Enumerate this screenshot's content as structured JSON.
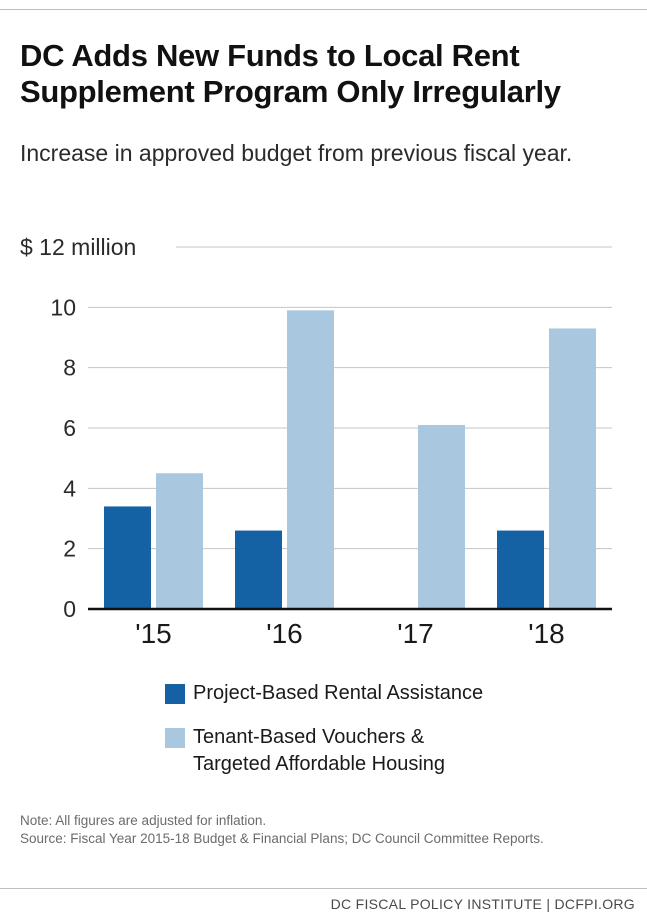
{
  "title": "DC Adds New Funds to Local Rent Supplement Program Only Irregularly",
  "subtitle": "Increase in approved budget from previous fiscal year.",
  "note": "Note: All figures are adjusted for inflation.",
  "source": "Source: Fiscal Year 2015-18 Budget & Financial Plans; DC Council Committee Reports.",
  "footer": "DC FISCAL POLICY INSTITUTE | DCFPI.ORG",
  "chart_data": {
    "type": "bar",
    "categories": [
      "'15",
      "'16",
      "'17",
      "'18"
    ],
    "series": [
      {
        "name": "Project-Based Rental Assistance",
        "color": "#1461a4",
        "values": [
          3.4,
          2.6,
          0,
          2.6
        ]
      },
      {
        "name": "Tenant-Based Vouchers & Targeted Affordable Housing",
        "color": "#a9c8e0",
        "values": [
          4.5,
          9.9,
          6.1,
          9.3
        ]
      }
    ],
    "yticks": [
      "0",
      "2",
      "4",
      "6",
      "8",
      "10",
      "$ 12 million"
    ],
    "ylim": [
      0,
      12
    ],
    "grid": true,
    "legend": "bottom"
  },
  "legend": {
    "items": [
      {
        "label": "Project-Based Rental Assistance",
        "color": "#1461a4"
      },
      {
        "label_line1": "Tenant-Based Vouchers &",
        "label_line2": "Targeted Affordable Housing",
        "color": "#a9c8e0"
      }
    ]
  }
}
